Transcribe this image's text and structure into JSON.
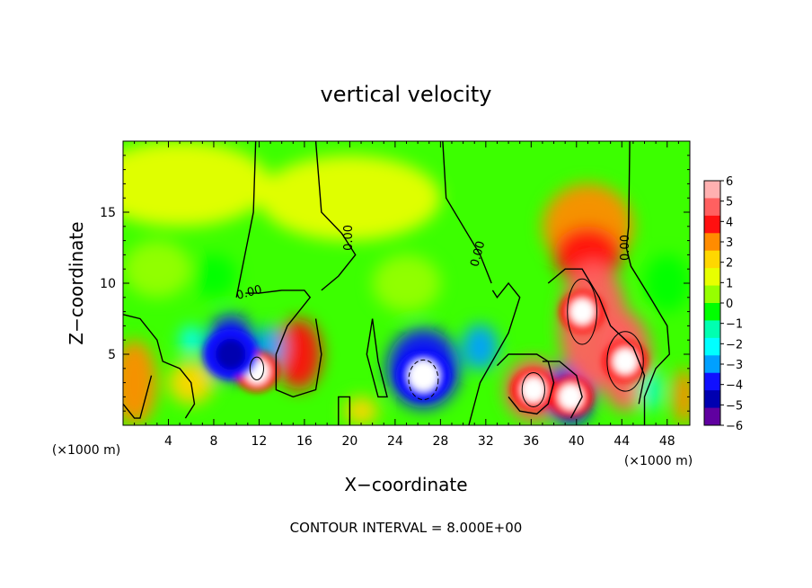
{
  "chart_data": {
    "type": "heatmap",
    "title": "vertical velocity",
    "xlabel": "X−coordinate",
    "ylabel": "Z−coordinate",
    "x_unit_left": "(×1000 m)",
    "x_unit_right": "(×1000 m)",
    "footer": "CONTOUR INTERVAL = 8.000E+00",
    "xlim": [
      0,
      50
    ],
    "ylim": [
      0,
      20
    ],
    "x_ticks": [
      4,
      8,
      12,
      16,
      20,
      24,
      28,
      32,
      36,
      40,
      44,
      48
    ],
    "x_tick_labels": [
      "4",
      "8",
      "12",
      "16",
      "20",
      "24",
      "28",
      "32",
      "36",
      "40",
      "44",
      "48"
    ],
    "y_ticks": [
      5,
      10,
      15
    ],
    "y_tick_labels": [
      "5",
      "10",
      "15"
    ],
    "colorbar": {
      "levels": [
        6,
        5,
        4,
        3,
        2,
        1,
        0,
        -1,
        -2,
        -3,
        -4,
        -5,
        -6
      ],
      "labels": [
        "6",
        "5",
        "4",
        "3",
        "2",
        "1",
        "0",
        "−1",
        "−2",
        "−3",
        "−4",
        "−5",
        "−6"
      ],
      "colors": [
        "#ffb0b0",
        "#ff6060",
        "#ff1010",
        "#ff8c00",
        "#ffd700",
        "#e8ff00",
        "#96ff00",
        "#00ff00",
        "#00ffb0",
        "#00ffff",
        "#00a0ff",
        "#1010ff",
        "#0000b0",
        "#6000a0"
      ]
    },
    "contour_labels": [
      {
        "text": "0.00",
        "x": 11.2,
        "z": 9.1,
        "angle": -15
      },
      {
        "text": "0.00",
        "x": 20.2,
        "z": 13.2,
        "angle": -90
      },
      {
        "text": "0.00",
        "x": 31.6,
        "z": 12.0,
        "angle": -75
      },
      {
        "text": "0.00",
        "x": 44.6,
        "z": 12.5,
        "angle": -90
      }
    ],
    "features": [
      {
        "x": 11.8,
        "z": 3.8,
        "w": 5,
        "kind": "updraft core"
      },
      {
        "x": 36.2,
        "z": 2.5,
        "w": 7,
        "kind": "updraft core"
      },
      {
        "x": 39.5,
        "z": 2.0,
        "w": 6,
        "kind": "updraft core"
      },
      {
        "x": 40.5,
        "z": 8.0,
        "w": 9,
        "kind": "updraft core"
      },
      {
        "x": 44.3,
        "z": 4.5,
        "w": 9,
        "kind": "updraft core"
      },
      {
        "x": 26.5,
        "z": 3.5,
        "w": -8,
        "kind": "downdraft core"
      },
      {
        "x": 9.5,
        "z": 5.0,
        "w": -6,
        "kind": "downdraft core"
      }
    ]
  }
}
